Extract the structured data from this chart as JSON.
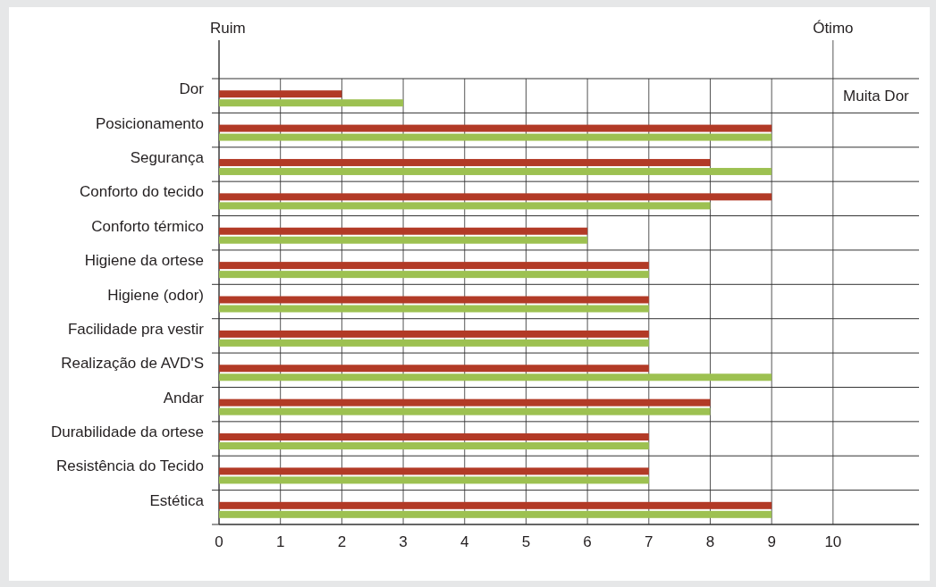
{
  "chart_data": {
    "type": "bar",
    "orientation": "horizontal",
    "categories": [
      "Dor",
      "Posicionamento",
      "Segurança",
      "Conforto do tecido",
      "Conforto térmico",
      "Higiene da ortese",
      "Higiene (odor)",
      "Facilidade pra vestir",
      "Realização de AVD'S",
      "Andar",
      "Durabilidade da ortese",
      "Resistência do Tecido",
      "Estética"
    ],
    "series": [
      {
        "color": "#b23a26",
        "values": [
          2,
          9,
          8,
          9,
          6,
          7,
          7,
          7,
          7,
          8,
          7,
          7,
          9
        ]
      },
      {
        "color": "#9dc151",
        "values": [
          3,
          9,
          9,
          8,
          6,
          7,
          7,
          7,
          9,
          8,
          7,
          7,
          9
        ]
      }
    ],
    "xlim": [
      0,
      11.4
    ],
    "xticks": [
      0,
      1,
      2,
      3,
      4,
      5,
      6,
      7,
      8,
      9,
      10
    ],
    "grid": true,
    "annotations": [
      "Ruim",
      "Ótimo",
      "Muita Dor"
    ]
  }
}
